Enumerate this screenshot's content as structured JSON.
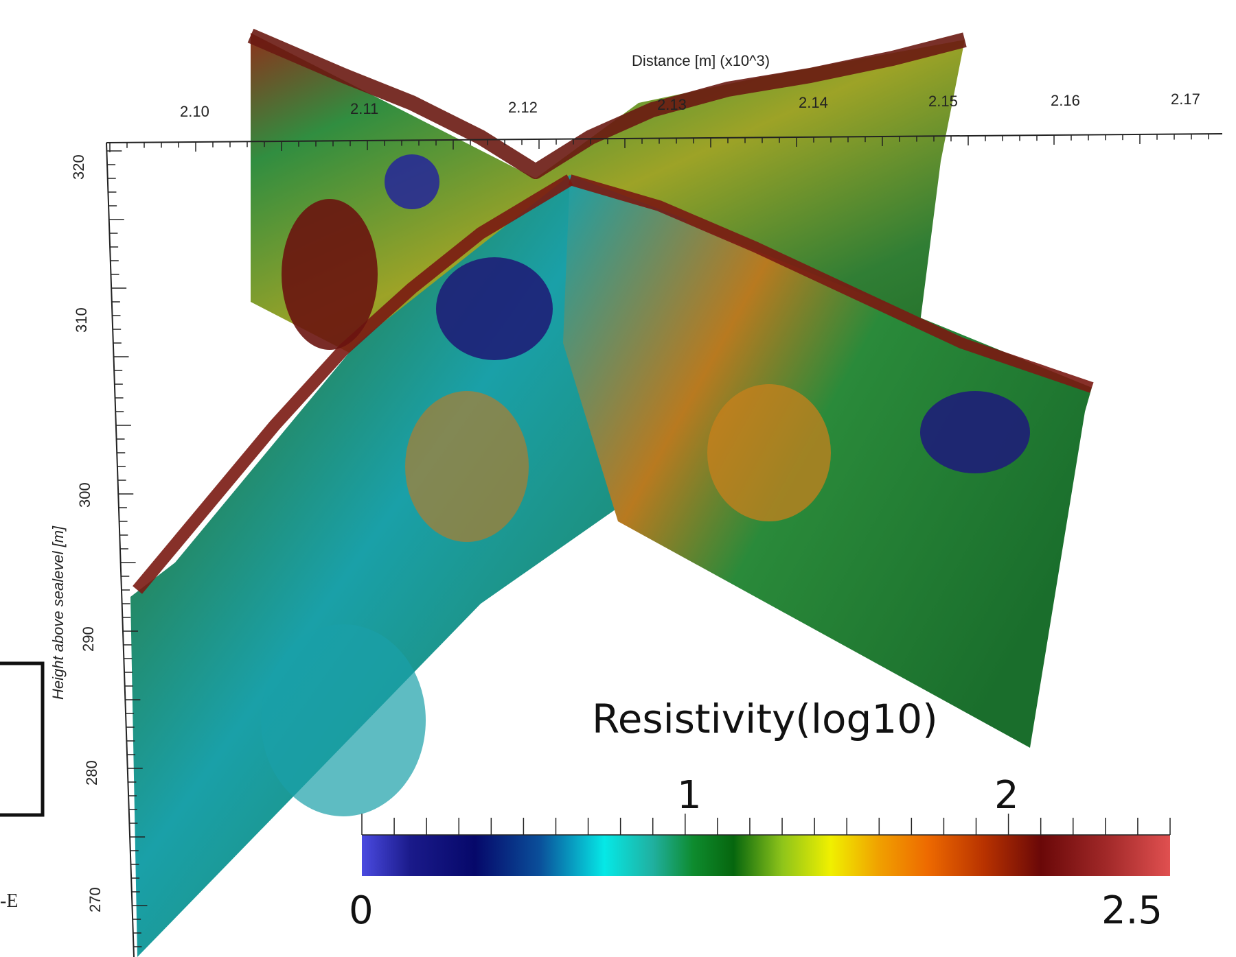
{
  "chart_data": {
    "type": "heatmap",
    "subtype": "3D resistivity tomography (two intersecting vertical sections)",
    "xlabel": "Distance [m] (x10^3)",
    "ylabel": "Height above sealevel [m]",
    "x_ticks": [
      "2.10",
      "2.11",
      "2.12",
      "2.13",
      "2.14",
      "2.15",
      "2.16",
      "2.17"
    ],
    "x_range": [
      2.095,
      2.175
    ],
    "y_ticks": [
      "320",
      "310",
      "300",
      "290",
      "280",
      "270"
    ],
    "y_range": [
      265,
      325
    ],
    "colorbar": {
      "title": "Resistivity(log10)",
      "min_label": "0",
      "max_label": "2.5",
      "mid_labels": [
        "1",
        "2"
      ],
      "min": 0,
      "max": 2.5,
      "colors": [
        "#4a4ae0",
        "#1a1a8a",
        "#06086a",
        "#0a4f9a",
        "#06e8e6",
        "#20b0a0",
        "#0e8b2e",
        "#06660e",
        "#8ec41a",
        "#f0f000",
        "#f0a000",
        "#ee6a00",
        "#b83200",
        "#6a0808",
        "#a02828",
        "#e05050"
      ]
    },
    "surface_palette": {
      "low": "#1e1e78",
      "mid_low": "#1aa0a8",
      "mid": "#2a8a3a",
      "mid_high": "#9aa020",
      "high": "#c8701c",
      "very_high": "#7a1a12"
    }
  },
  "left_fragment": {
    "text": "-E"
  }
}
